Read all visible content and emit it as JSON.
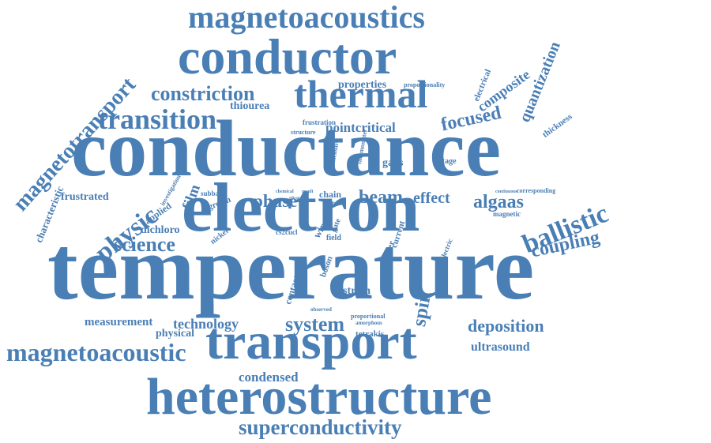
{
  "colors": {
    "text": "#4a7fb5",
    "background": "#ffffff"
  },
  "words": {
    "temperature": "temperature",
    "conductance": "conductance",
    "electron": "electron",
    "heterostructure": "heterostructure",
    "conductor": "conductor",
    "transport": "transport",
    "magnetoacoustics": "magnetoacoustics",
    "thermal": "thermal",
    "transition": "transition",
    "magnetotransport": "magnetotransport",
    "constriction": "constriction",
    "superconductivity": "superconductivity",
    "magnetoacoustic": "magnetoacoustic",
    "ballistic": "ballistic",
    "focused": "focused",
    "physic": "physic",
    "science": "science",
    "phase": "phase",
    "beam": "beam",
    "effect": "effect",
    "algaas": "algaas",
    "coupling": "coupling",
    "system": "system",
    "deposition": "deposition",
    "spin": "spin",
    "composite": "composite",
    "quantization": "quantization",
    "condensed": "condensed",
    "technology": "technology",
    "measurement": "measurement",
    "ultrasound": "ultrasound",
    "pointcritical": "pointcritical",
    "properties": "properties",
    "thiourea": "thiourea",
    "frustrated": "frustrated",
    "dichloro": "dichloro",
    "characteristic": "characteristic",
    "film": "film",
    "applied": "applied",
    "investigation": "investigation",
    "strain": "strain",
    "gaas": "gaas",
    "electrical": "electrical",
    "thickness": "thickness",
    "physical": "physical",
    "tetrakis": "tetrakis",
    "proportional": "proportional",
    "amorphous": "amorphous",
    "observed": "observed",
    "contact": "contact",
    "boson": "boson",
    "nickel": "nickel",
    "grown": "grown",
    "subband": "subband",
    "chain": "chain",
    "hard": "hard",
    "matter": "matter",
    "current": "current",
    "gate": "gate",
    "field": "field",
    "cs2cucl": "cs2cucl",
    "wire": "wire",
    "magnetic": "magnetic",
    "corresponding": "corresponding",
    "continuous": "continuous",
    "voltage": "voltage",
    "proportionality": "proportionality",
    "frustration": "frustration",
    "structure": "structure",
    "thermometer": "thermometer",
    "measure": "measure",
    "chemical": "chemical",
    "result": "result",
    "electric": "electric",
    "silicon": "silicon"
  }
}
